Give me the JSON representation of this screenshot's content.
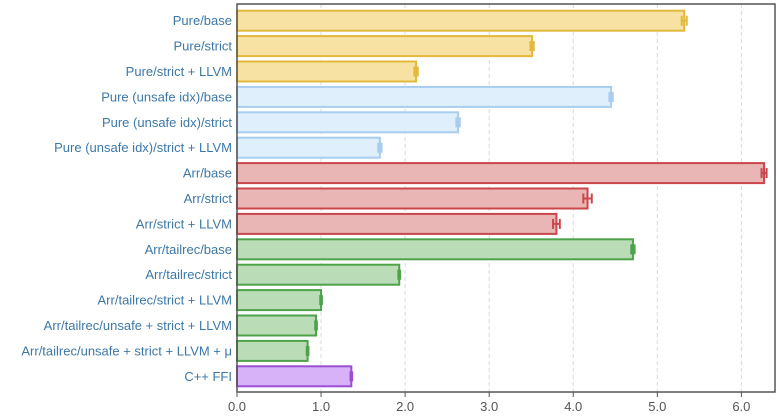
{
  "chart_data": {
    "type": "bar",
    "orientation": "horizontal",
    "grid": true,
    "xlim": [
      0,
      6.4
    ],
    "xticks": [
      0,
      1,
      2,
      3,
      4,
      5,
      6
    ],
    "xtick_labels": [
      "0.0",
      "1.0",
      "2.0",
      "3.0",
      "4.0",
      "5.0",
      "6.0"
    ],
    "categories": [
      "Pure/base",
      "Pure/strict",
      "Pure/strict + LLVM",
      "Pure (unsafe idx)/base",
      "Pure (unsafe idx)/strict",
      "Pure (unsafe idx)/strict + LLVM",
      "Arr/base",
      "Arr/strict",
      "Arr/strict + LLVM",
      "Arr/tailrec/base",
      "Arr/tailrec/strict",
      "Arr/tailrec/strict + LLVM",
      "Arr/tailrec/unsafe + strict + LLVM",
      "Arr/tailrec/unsafe + strict + LLVM + μ",
      "C++ FFI"
    ],
    "values": [
      5.32,
      3.51,
      2.13,
      4.45,
      2.63,
      1.7,
      6.27,
      4.17,
      3.8,
      4.71,
      1.93,
      1.0,
      0.94,
      0.84,
      1.36
    ],
    "errors": [
      0.03,
      0.02,
      0.02,
      0.02,
      0.02,
      0.02,
      0.03,
      0.05,
      0.04,
      0.02,
      0.01,
      0.01,
      0.01,
      0.01,
      0.01
    ],
    "group_colors": [
      {
        "fill": "#f8e2a3",
        "stroke": "#e2b93d"
      },
      {
        "fill": "#e0effc",
        "stroke": "#a8cdef"
      },
      {
        "fill": "#eab6b5",
        "stroke": "#c9464a"
      },
      {
        "fill": "#badcb6",
        "stroke": "#4ea24a"
      },
      {
        "fill": "#d8b2f8",
        "stroke": "#9a4fd3"
      }
    ],
    "bar_groups": [
      0,
      0,
      0,
      1,
      1,
      1,
      2,
      2,
      2,
      3,
      3,
      3,
      3,
      3,
      4
    ]
  }
}
